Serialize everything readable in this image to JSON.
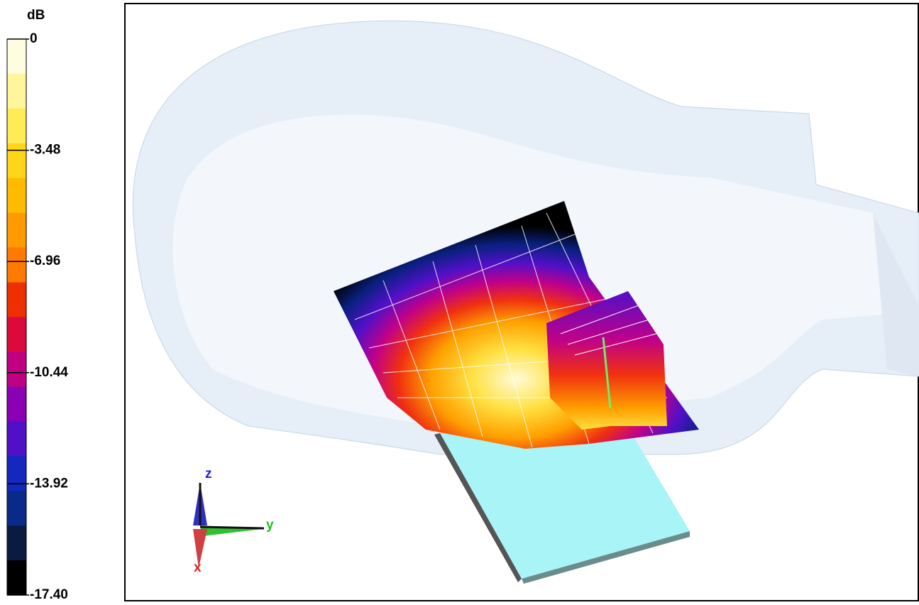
{
  "colorbar": {
    "unit": "dB",
    "lim": [
      -17.4,
      0
    ],
    "ticks": [
      0,
      {
        "value": -3.48,
        "label": "-3.48"
      },
      {
        "value": -6.96,
        "label": "-6.96"
      },
      {
        "value": -10.44,
        "label": "-10.44"
      },
      {
        "value": -13.92,
        "label": "-13.92"
      },
      {
        "value": -17.4,
        "label": "-17.40"
      }
    ],
    "colors": [
      "#fffde0",
      "#fff59a",
      "#ffeb55",
      "#ffd51a",
      "#ffbb00",
      "#ff9a00",
      "#ff7a00",
      "#ee3000",
      "#dc0a3c",
      "#c00082",
      "#8a00b4",
      "#5010c8",
      "#1428c0",
      "#0a2a8a",
      "#0a1a40",
      "#000000"
    ]
  },
  "axes": {
    "z": "z",
    "y": "y",
    "x": "x"
  }
}
